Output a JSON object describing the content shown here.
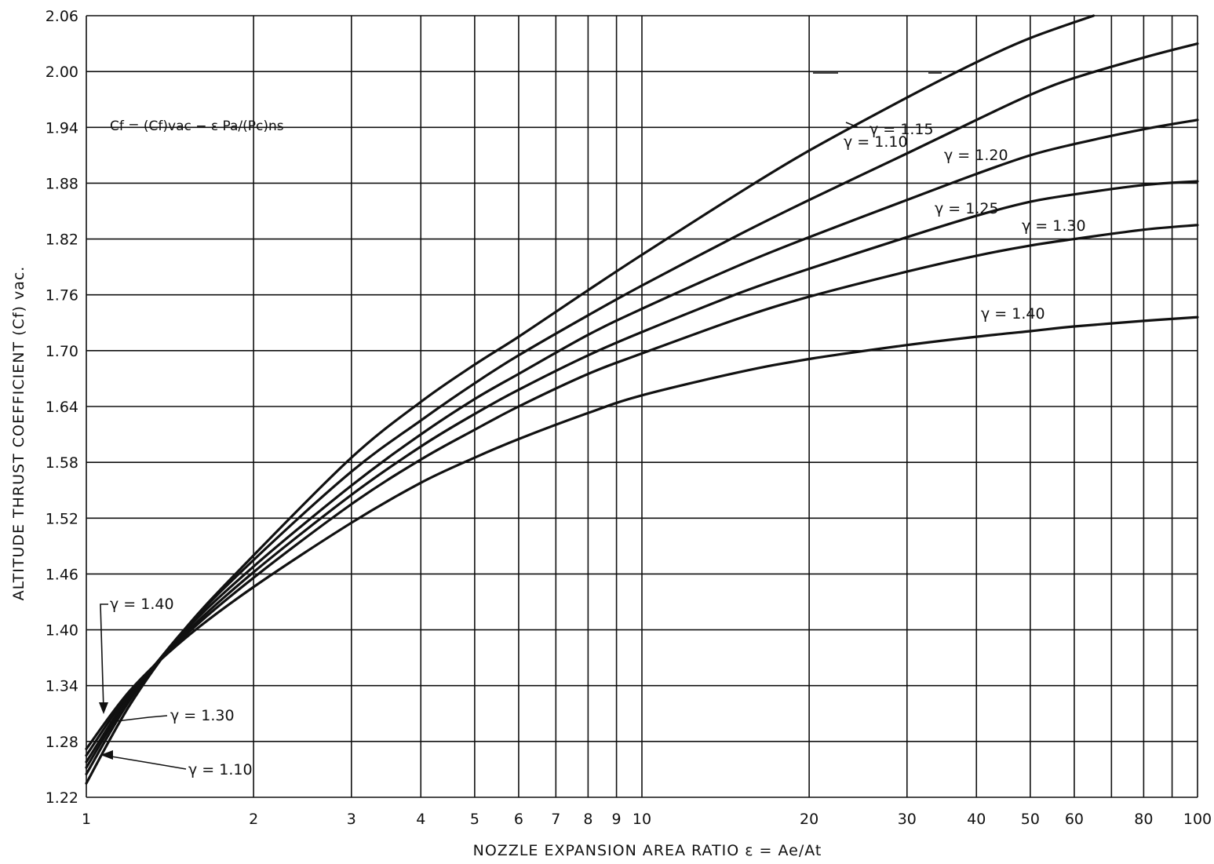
{
  "chart_data": {
    "type": "line",
    "title": "",
    "formula": "Cf = (Cf)vac − ε Pa/(Pc)ns",
    "xlabel": "NOZZLE EXPANSION AREA RATIO ε = Ae/At",
    "ylabel": "ALTITUDE THRUST COEFFICIENT (Cf) vac.",
    "x_scale": "log",
    "xlim": [
      1,
      100
    ],
    "ylim": [
      1.22,
      2.06
    ],
    "x_ticks": [
      1,
      2,
      3,
      4,
      5,
      6,
      7,
      8,
      9,
      10,
      20,
      30,
      40,
      50,
      60,
      80,
      100
    ],
    "x_tick_labels": [
      "1",
      "2",
      "3",
      "4",
      "5",
      "6",
      "7",
      "8",
      "9",
      "10",
      "20",
      "30",
      "40",
      "50",
      "60",
      "80",
      "100"
    ],
    "x_grid_values": [
      1,
      2,
      3,
      4,
      5,
      6,
      7,
      8,
      9,
      10,
      20,
      30,
      40,
      50,
      60,
      70,
      80,
      90,
      100
    ],
    "y_ticks": [
      1.22,
      1.28,
      1.34,
      1.4,
      1.46,
      1.52,
      1.58,
      1.64,
      1.7,
      1.76,
      1.82,
      1.88,
      1.94,
      2.0,
      2.06
    ],
    "y_tick_labels": [
      "1.22",
      "1.28",
      "1.34",
      "1.40",
      "1.46",
      "1.52",
      "1.58",
      "1.64",
      "1.70",
      "1.76",
      "1.82",
      "1.88",
      "1.94",
      "2.00",
      "2.06"
    ],
    "grid": true,
    "series": [
      {
        "name": "γ = 1.10",
        "x": [
          1,
          1.2,
          1.5,
          2,
          3,
          4,
          5,
          6,
          8,
          10,
          15,
          20,
          30,
          40,
          50,
          65
        ],
        "y": [
          1.235,
          1.32,
          1.4,
          1.48,
          1.585,
          1.645,
          1.685,
          1.715,
          1.765,
          1.803,
          1.87,
          1.915,
          1.972,
          2.01,
          2.036,
          2.06
        ]
      },
      {
        "name": "γ = 1.15",
        "x": [
          1,
          1.2,
          1.5,
          2,
          3,
          4,
          5,
          6,
          8,
          10,
          15,
          20,
          30,
          40,
          50,
          60,
          80,
          100
        ],
        "y": [
          1.245,
          1.325,
          1.4,
          1.475,
          1.57,
          1.625,
          1.665,
          1.695,
          1.738,
          1.77,
          1.825,
          1.862,
          1.912,
          1.948,
          1.975,
          1.993,
          2.015,
          2.03
        ]
      },
      {
        "name": "γ = 1.20",
        "x": [
          1,
          1.2,
          1.5,
          2,
          3,
          4,
          5,
          6,
          8,
          10,
          15,
          20,
          30,
          40,
          50,
          60,
          80,
          100
        ],
        "y": [
          1.252,
          1.328,
          1.398,
          1.468,
          1.555,
          1.61,
          1.648,
          1.675,
          1.717,
          1.745,
          1.792,
          1.822,
          1.862,
          1.89,
          1.91,
          1.922,
          1.938,
          1.948
        ]
      },
      {
        "name": "γ = 1.25",
        "x": [
          1,
          1.2,
          1.5,
          2,
          3,
          4,
          5,
          6,
          8,
          10,
          15,
          20,
          30,
          40,
          50,
          60,
          80,
          100
        ],
        "y": [
          1.258,
          1.33,
          1.395,
          1.462,
          1.545,
          1.597,
          1.632,
          1.658,
          1.695,
          1.72,
          1.762,
          1.788,
          1.822,
          1.845,
          1.86,
          1.868,
          1.878,
          1.882
        ]
      },
      {
        "name": "γ = 1.30",
        "x": [
          1,
          1.2,
          1.5,
          2,
          3,
          4,
          5,
          6,
          8,
          10,
          15,
          20,
          30,
          40,
          50,
          60,
          80,
          100
        ],
        "y": [
          1.265,
          1.333,
          1.393,
          1.456,
          1.535,
          1.583,
          1.615,
          1.64,
          1.675,
          1.697,
          1.735,
          1.758,
          1.785,
          1.802,
          1.813,
          1.82,
          1.83,
          1.835
        ]
      },
      {
        "name": "γ = 1.40",
        "x": [
          1,
          1.2,
          1.5,
          2,
          3,
          4,
          5,
          6,
          8,
          10,
          15,
          20,
          30,
          40,
          50,
          60,
          80,
          100
        ],
        "y": [
          1.272,
          1.335,
          1.39,
          1.446,
          1.515,
          1.558,
          1.585,
          1.605,
          1.633,
          1.652,
          1.677,
          1.691,
          1.706,
          1.715,
          1.721,
          1.726,
          1.732,
          1.736
        ]
      }
    ],
    "annotations": [
      {
        "text": "γ = 1.10",
        "x": 11.5,
        "y": 2.0
      },
      {
        "text": "γ = 1.15",
        "x": 16,
        "y": 1.955
      },
      {
        "text": "γ = 1.20",
        "x": 16,
        "y": 1.928
      },
      {
        "text": "γ = 1.25",
        "x": 16,
        "y": 1.857
      },
      {
        "text": "γ = 1.30",
        "x": 16,
        "y": 1.825
      },
      {
        "text": "γ = 1.40",
        "x": 16,
        "y": 1.74
      },
      {
        "text": "γ = 1.40",
        "x": 1.08,
        "y": 1.427
      },
      {
        "text": "γ = 1.30",
        "x": 1.3,
        "y": 1.305
      },
      {
        "text": "γ = 1.10",
        "x": 1.3,
        "y": 1.258
      }
    ]
  }
}
